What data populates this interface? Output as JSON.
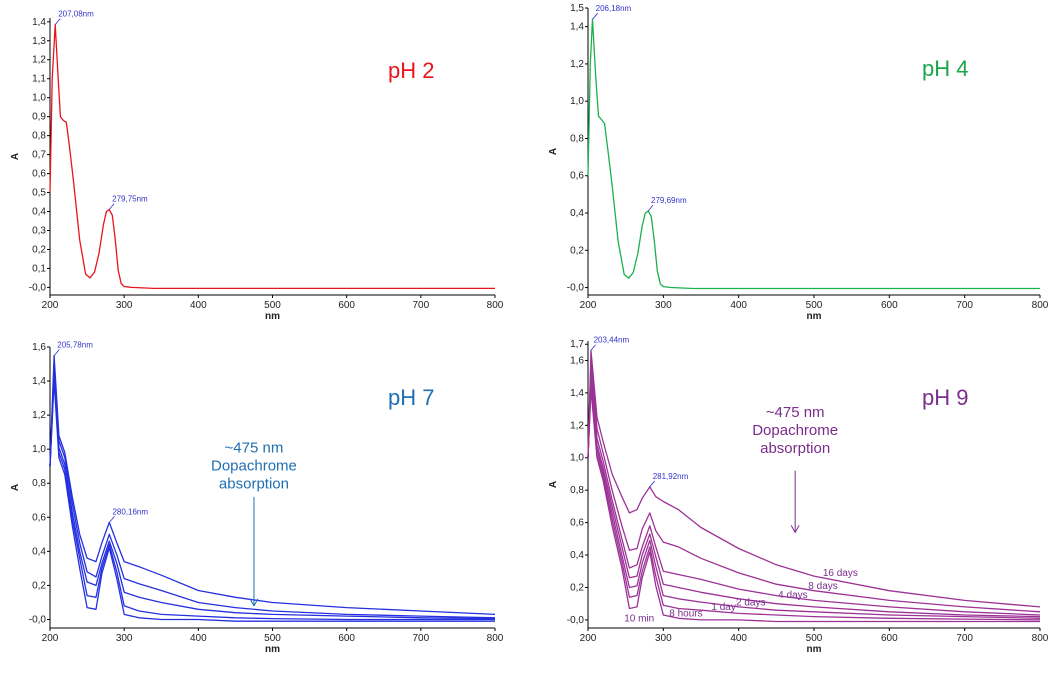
{
  "chart_data": [
    {
      "type": "line",
      "xlabel": "nm",
      "ylabel": "A",
      "xlim": [
        200,
        800
      ],
      "ylim": [
        -0.04,
        1.42
      ],
      "xticks": [
        "200",
        "300",
        "400",
        "500",
        "600",
        "700",
        "800"
      ],
      "yticks": [
        {
          "v": 1.4,
          "t": "1,4"
        },
        {
          "v": 1.3,
          "t": "1,3"
        },
        {
          "v": 1.2,
          "t": "1,2"
        },
        {
          "v": 1.1,
          "t": "1,1"
        },
        {
          "v": 1.0,
          "t": "1,0"
        },
        {
          "v": 0.9,
          "t": "0,9"
        },
        {
          "v": 0.8,
          "t": "0,8"
        },
        {
          "v": 0.7,
          "t": "0,7"
        },
        {
          "v": 0.6,
          "t": "0,6"
        },
        {
          "v": 0.5,
          "t": "0,5"
        },
        {
          "v": 0.4,
          "t": "0,4"
        },
        {
          "v": 0.3,
          "t": "0,3"
        },
        {
          "v": 0.2,
          "t": "0,2"
        },
        {
          "v": 0.1,
          "t": "0,1"
        },
        {
          "v": 0.0,
          "t": "-0,0"
        }
      ],
      "color": "#e8141c",
      "label": "pH 2",
      "label_color": "#e8141c",
      "peaks": [
        {
          "text": "207,08nm",
          "x": 207,
          "y": 1.385
        },
        {
          "text": "279,75nm",
          "x": 279.75,
          "y": 0.41
        }
      ],
      "series": [
        {
          "x": [
            200,
            203,
            207,
            211,
            214,
            218,
            222,
            226,
            232,
            240,
            248,
            254,
            260,
            266,
            272,
            276,
            280,
            284,
            288,
            292,
            296,
            300,
            310,
            340,
            400,
            500,
            600,
            700,
            800
          ],
          "y": [
            0.5,
            1.1,
            1.385,
            1.1,
            0.9,
            0.88,
            0.87,
            0.75,
            0.55,
            0.25,
            0.07,
            0.05,
            0.08,
            0.18,
            0.33,
            0.4,
            0.41,
            0.38,
            0.25,
            0.09,
            0.02,
            0.005,
            0.0,
            -0.005,
            -0.005,
            -0.005,
            -0.005,
            -0.005,
            -0.005
          ]
        }
      ]
    },
    {
      "type": "line",
      "xlabel": "nm",
      "ylabel": "A",
      "xlim": [
        200,
        800
      ],
      "ylim": [
        -0.04,
        1.5
      ],
      "xticks": [
        "200",
        "300",
        "400",
        "500",
        "600",
        "700",
        "800"
      ],
      "yticks": [
        {
          "v": 1.5,
          "t": "1,5"
        },
        {
          "v": 1.4,
          "t": "1,4"
        },
        {
          "v": 1.2,
          "t": "1,2"
        },
        {
          "v": 1.0,
          "t": "1,0"
        },
        {
          "v": 0.8,
          "t": "0,8"
        },
        {
          "v": 0.6,
          "t": "0,6"
        },
        {
          "v": 0.4,
          "t": "0,4"
        },
        {
          "v": 0.2,
          "t": "0,2"
        },
        {
          "v": 0.0,
          "t": "-0,0"
        }
      ],
      "color": "#19b24b",
      "label": "pH 4",
      "label_color": "#1aa64a",
      "peaks": [
        {
          "text": "206,18nm",
          "x": 206.18,
          "y": 1.44
        },
        {
          "text": "279,69nm",
          "x": 279.69,
          "y": 0.41
        }
      ],
      "series": [
        {
          "x": [
            200,
            203,
            206,
            210,
            214,
            218,
            222,
            226,
            232,
            240,
            248,
            254,
            260,
            266,
            272,
            276,
            280,
            284,
            288,
            292,
            296,
            300,
            310,
            340,
            400,
            500,
            600,
            700,
            800
          ],
          "y": [
            0.6,
            1.2,
            1.44,
            1.15,
            0.92,
            0.9,
            0.88,
            0.75,
            0.55,
            0.25,
            0.07,
            0.05,
            0.08,
            0.18,
            0.33,
            0.4,
            0.41,
            0.38,
            0.25,
            0.09,
            0.02,
            0.005,
            0.0,
            -0.005,
            -0.005,
            -0.005,
            -0.005,
            -0.005,
            -0.005
          ]
        }
      ]
    },
    {
      "type": "line",
      "xlabel": "nm",
      "ylabel": "A",
      "xlim": [
        200,
        800
      ],
      "ylim": [
        -0.05,
        1.6
      ],
      "xticks": [
        "200",
        "300",
        "400",
        "500",
        "600",
        "700",
        "800"
      ],
      "yticks": [
        {
          "v": 1.6,
          "t": "1,6"
        },
        {
          "v": 1.4,
          "t": "1,4"
        },
        {
          "v": 1.2,
          "t": "1,2"
        },
        {
          "v": 1.0,
          "t": "1,0"
        },
        {
          "v": 0.8,
          "t": "0,8"
        },
        {
          "v": 0.6,
          "t": "0,6"
        },
        {
          "v": 0.4,
          "t": "0,4"
        },
        {
          "v": 0.2,
          "t": "0,2"
        },
        {
          "v": 0.0,
          "t": "-0,0"
        }
      ],
      "color": "#2430e0",
      "label": "pH 7",
      "label_color": "#1f6fb2",
      "peaks": [
        {
          "text": "205,78nm",
          "x": 205.78,
          "y": 1.55
        },
        {
          "text": "280,16nm",
          "x": 280.16,
          "y": 0.57
        }
      ],
      "annotation": {
        "lines": [
          "~475 nm",
          "Dopachrome",
          "absorption"
        ],
        "x": 475,
        "y": 0.98,
        "arrow_from": 0.72,
        "arrow_to": 0.08,
        "color": "#1f6fb2"
      },
      "series": [
        {
          "x": [
            200,
            205.5,
            212,
            220,
            230,
            240,
            250,
            262,
            270,
            280,
            290,
            300,
            320,
            350,
            400,
            450,
            500,
            600,
            700,
            800
          ],
          "y": [
            0.9,
            1.55,
            1.08,
            0.98,
            0.72,
            0.5,
            0.36,
            0.34,
            0.45,
            0.57,
            0.45,
            0.34,
            0.31,
            0.26,
            0.17,
            0.13,
            0.1,
            0.07,
            0.05,
            0.03
          ]
        },
        {
          "x": [
            200,
            205.5,
            212,
            220,
            230,
            240,
            250,
            262,
            270,
            280,
            290,
            300,
            320,
            350,
            400,
            450,
            500,
            600,
            700,
            800
          ],
          "y": [
            0.9,
            1.5,
            1.05,
            0.95,
            0.68,
            0.45,
            0.28,
            0.25,
            0.37,
            0.5,
            0.38,
            0.24,
            0.21,
            0.17,
            0.1,
            0.07,
            0.05,
            0.03,
            0.02,
            0.01
          ]
        },
        {
          "x": [
            200,
            205.5,
            212,
            220,
            230,
            240,
            250,
            262,
            270,
            280,
            290,
            300,
            320,
            350,
            400,
            450,
            500,
            600,
            700,
            800
          ],
          "y": [
            0.9,
            1.46,
            1.01,
            0.91,
            0.63,
            0.4,
            0.22,
            0.2,
            0.33,
            0.46,
            0.33,
            0.16,
            0.13,
            0.1,
            0.06,
            0.04,
            0.03,
            0.02,
            0.01,
            0.005
          ]
        },
        {
          "x": [
            200,
            205.5,
            212,
            220,
            230,
            240,
            250,
            262,
            270,
            280,
            290,
            300,
            320,
            350,
            400,
            450,
            500,
            600,
            700,
            800
          ],
          "y": [
            0.9,
            1.43,
            0.98,
            0.88,
            0.59,
            0.36,
            0.14,
            0.13,
            0.3,
            0.44,
            0.28,
            0.08,
            0.05,
            0.03,
            0.02,
            0.01,
            0.005,
            0.0,
            0.0,
            0.0
          ]
        },
        {
          "x": [
            200,
            205.5,
            212,
            220,
            230,
            240,
            250,
            262,
            270,
            280,
            290,
            300,
            320,
            350,
            400,
            450,
            500,
            600,
            700,
            800
          ],
          "y": [
            0.9,
            1.4,
            0.95,
            0.85,
            0.55,
            0.3,
            0.07,
            0.06,
            0.27,
            0.42,
            0.24,
            0.03,
            0.01,
            0.0,
            0.0,
            -0.01,
            -0.01,
            -0.01,
            -0.01,
            -0.01
          ]
        }
      ]
    },
    {
      "type": "line",
      "xlabel": "nm",
      "ylabel": "A",
      "xlim": [
        200,
        800
      ],
      "ylim": [
        -0.05,
        1.72
      ],
      "xticks": [
        "200",
        "300",
        "400",
        "500",
        "600",
        "700",
        "800"
      ],
      "yticks": [
        {
          "v": 1.7,
          "t": "1,7"
        },
        {
          "v": 1.6,
          "t": "1,6"
        },
        {
          "v": 1.4,
          "t": "1,4"
        },
        {
          "v": 1.2,
          "t": "1,2"
        },
        {
          "v": 1.0,
          "t": "1,0"
        },
        {
          "v": 0.8,
          "t": "0,8"
        },
        {
          "v": 0.6,
          "t": "0,6"
        },
        {
          "v": 0.4,
          "t": "0,4"
        },
        {
          "v": 0.2,
          "t": "0,2"
        },
        {
          "v": 0.0,
          "t": "-0,0"
        }
      ],
      "color": "#9c3296",
      "label": "pH 9",
      "label_color": "#7a2d8c",
      "peaks": [
        {
          "text": "203,44nm",
          "x": 203.44,
          "y": 1.66
        },
        {
          "text": "281,92nm",
          "x": 281.92,
          "y": 0.82
        }
      ],
      "annotation": {
        "lines": [
          "~475 nm",
          "Dopachrome",
          "absorption"
        ],
        "x": 475,
        "y": 1.25,
        "arrow_from": 0.92,
        "arrow_to": 0.54,
        "color": "#7a2d8c"
      },
      "curve_labels": [
        {
          "text": "16 days",
          "x": 535,
          "y": 0.27
        },
        {
          "text": "8 days",
          "x": 512,
          "y": 0.19
        },
        {
          "text": "4 days",
          "x": 472,
          "y": 0.135
        },
        {
          "text": "2 days",
          "x": 416,
          "y": 0.09
        },
        {
          "text": "1 day",
          "x": 380,
          "y": 0.06
        },
        {
          "text": "8 hours",
          "x": 330,
          "y": 0.02
        },
        {
          "text": "10 min",
          "x": 268,
          "y": -0.01
        }
      ],
      "series": [
        {
          "x": [
            200,
            204,
            212,
            220,
            232,
            245,
            255,
            265,
            272,
            282,
            290,
            300,
            320,
            350,
            400,
            450,
            500,
            600,
            700,
            800
          ],
          "y": [
            1.0,
            1.66,
            1.25,
            1.1,
            0.9,
            0.76,
            0.66,
            0.68,
            0.75,
            0.82,
            0.76,
            0.73,
            0.68,
            0.57,
            0.44,
            0.34,
            0.27,
            0.18,
            0.12,
            0.08
          ]
        },
        {
          "x": [
            200,
            204,
            212,
            220,
            232,
            245,
            255,
            265,
            272,
            282,
            290,
            300,
            320,
            350,
            400,
            450,
            500,
            600,
            700,
            800
          ],
          "y": [
            1.0,
            1.61,
            1.18,
            1.03,
            0.8,
            0.58,
            0.43,
            0.44,
            0.56,
            0.66,
            0.55,
            0.48,
            0.45,
            0.38,
            0.29,
            0.22,
            0.18,
            0.12,
            0.08,
            0.05
          ]
        },
        {
          "x": [
            200,
            204,
            212,
            220,
            232,
            245,
            255,
            265,
            272,
            282,
            290,
            300,
            320,
            350,
            400,
            450,
            500,
            600,
            700,
            800
          ],
          "y": [
            1.0,
            1.56,
            1.12,
            0.98,
            0.74,
            0.5,
            0.32,
            0.34,
            0.45,
            0.58,
            0.45,
            0.3,
            0.28,
            0.25,
            0.19,
            0.15,
            0.12,
            0.08,
            0.05,
            0.03
          ]
        },
        {
          "x": [
            200,
            204,
            212,
            220,
            232,
            245,
            255,
            265,
            272,
            282,
            290,
            300,
            320,
            350,
            400,
            450,
            500,
            600,
            700,
            800
          ],
          "y": [
            1.0,
            1.52,
            1.08,
            0.94,
            0.7,
            0.45,
            0.26,
            0.27,
            0.4,
            0.53,
            0.39,
            0.22,
            0.2,
            0.17,
            0.13,
            0.1,
            0.08,
            0.05,
            0.03,
            0.02
          ]
        },
        {
          "x": [
            200,
            204,
            212,
            220,
            232,
            245,
            255,
            265,
            272,
            282,
            290,
            300,
            320,
            350,
            400,
            450,
            500,
            600,
            700,
            800
          ],
          "y": [
            1.0,
            1.48,
            1.05,
            0.91,
            0.66,
            0.4,
            0.2,
            0.21,
            0.35,
            0.49,
            0.33,
            0.15,
            0.13,
            0.11,
            0.08,
            0.06,
            0.05,
            0.03,
            0.02,
            0.01
          ]
        },
        {
          "x": [
            200,
            204,
            212,
            220,
            232,
            245,
            255,
            265,
            272,
            282,
            290,
            300,
            320,
            350,
            400,
            450,
            500,
            600,
            700,
            800
          ],
          "y": [
            1.0,
            1.45,
            1.02,
            0.88,
            0.62,
            0.36,
            0.14,
            0.15,
            0.3,
            0.45,
            0.27,
            0.09,
            0.07,
            0.06,
            0.04,
            0.03,
            0.02,
            0.01,
            0.005,
            0.0
          ]
        },
        {
          "x": [
            200,
            204,
            212,
            220,
            232,
            245,
            255,
            265,
            272,
            282,
            290,
            300,
            320,
            350,
            400,
            450,
            500,
            600,
            700,
            800
          ],
          "y": [
            1.0,
            1.42,
            1.0,
            0.86,
            0.58,
            0.32,
            0.07,
            0.08,
            0.26,
            0.42,
            0.21,
            0.03,
            0.01,
            0.0,
            0.0,
            -0.01,
            -0.01,
            -0.01,
            -0.01,
            -0.01
          ]
        }
      ]
    }
  ]
}
